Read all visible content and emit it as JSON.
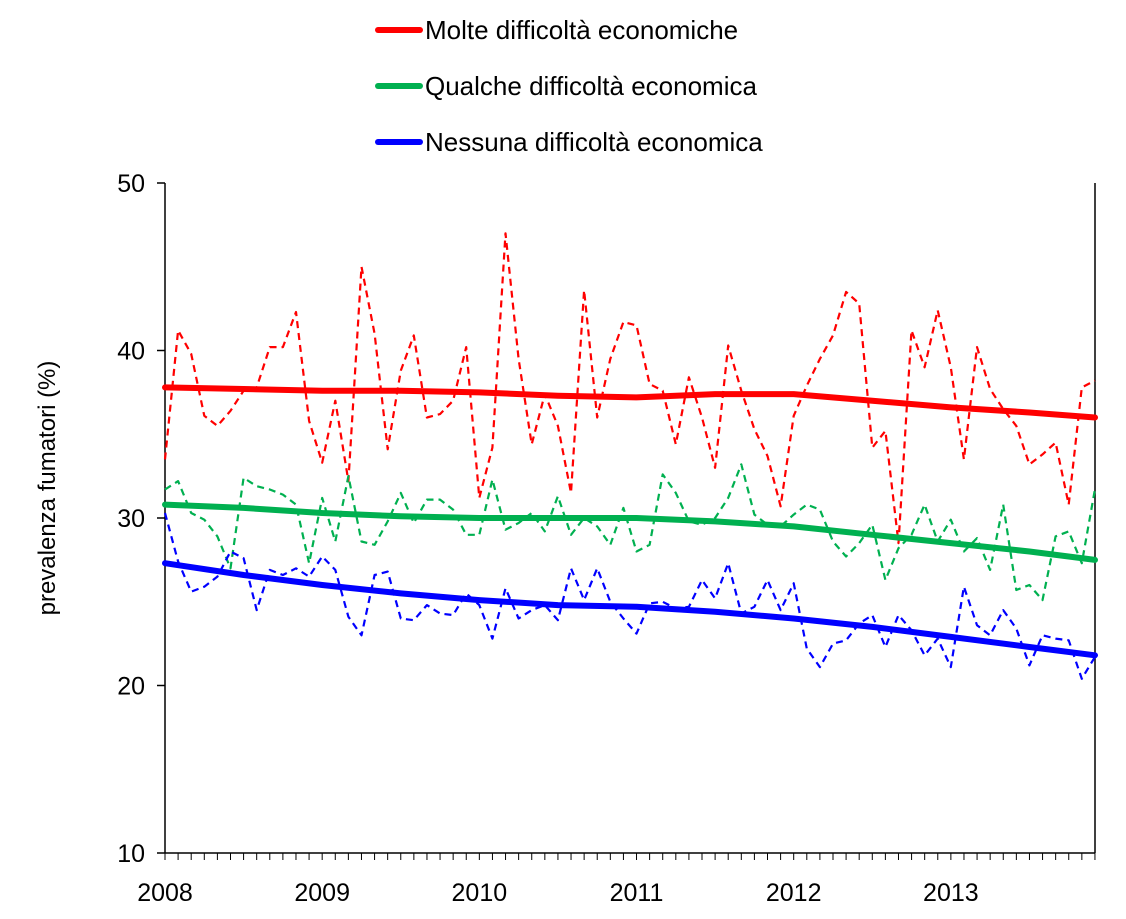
{
  "chart_data": {
    "type": "line",
    "title": "",
    "xlabel": "",
    "ylabel": "prevalenza fumatori (%)",
    "ylim": [
      10,
      50
    ],
    "yticks": [
      10,
      20,
      30,
      40,
      50
    ],
    "xlim": [
      2008.0,
      2013.917
    ],
    "xticks": [
      {
        "label": "2008",
        "value": 2008
      },
      {
        "label": "2009",
        "value": 2009
      },
      {
        "label": "2010",
        "value": 2010
      },
      {
        "label": "2011",
        "value": 2011
      },
      {
        "label": "2012",
        "value": 2012
      },
      {
        "label": "2013",
        "value": 2013
      }
    ],
    "x_unit": "year (monthly data, January 2008 – December 2013)",
    "grid": false,
    "legend_position": "top",
    "series": [
      {
        "name": "Molte difficoltà economiche",
        "color": "#ff0000",
        "style": "solid",
        "kind": "trend",
        "points": [
          [
            2008.0,
            37.8
          ],
          [
            2008.5,
            37.7
          ],
          [
            2009.0,
            37.6
          ],
          [
            2009.5,
            37.6
          ],
          [
            2010.0,
            37.5
          ],
          [
            2010.5,
            37.3
          ],
          [
            2011.0,
            37.2
          ],
          [
            2011.5,
            37.4
          ],
          [
            2012.0,
            37.4
          ],
          [
            2012.5,
            37.0
          ],
          [
            2013.0,
            36.6
          ],
          [
            2013.5,
            36.3
          ],
          [
            2013.917,
            36.0
          ]
        ]
      },
      {
        "name": "Qualche difficoltà economica",
        "color": "#00b050",
        "style": "solid",
        "kind": "trend",
        "points": [
          [
            2008.0,
            30.8
          ],
          [
            2008.5,
            30.6
          ],
          [
            2009.0,
            30.3
          ],
          [
            2009.5,
            30.1
          ],
          [
            2010.0,
            30.0
          ],
          [
            2010.5,
            30.0
          ],
          [
            2011.0,
            30.0
          ],
          [
            2011.5,
            29.8
          ],
          [
            2012.0,
            29.5
          ],
          [
            2012.5,
            29.0
          ],
          [
            2013.0,
            28.5
          ],
          [
            2013.5,
            28.0
          ],
          [
            2013.917,
            27.5
          ]
        ]
      },
      {
        "name": "Nessuna difficoltà economica",
        "color": "#0000ff",
        "style": "solid",
        "kind": "trend",
        "points": [
          [
            2008.0,
            27.3
          ],
          [
            2008.5,
            26.6
          ],
          [
            2009.0,
            26.0
          ],
          [
            2009.5,
            25.5
          ],
          [
            2010.0,
            25.1
          ],
          [
            2010.5,
            24.8
          ],
          [
            2011.0,
            24.7
          ],
          [
            2011.5,
            24.4
          ],
          [
            2012.0,
            24.0
          ],
          [
            2012.5,
            23.5
          ],
          [
            2013.0,
            22.9
          ],
          [
            2013.5,
            22.3
          ],
          [
            2013.917,
            21.8
          ]
        ]
      },
      {
        "name": "",
        "color": "#ff0000",
        "style": "dashed",
        "kind": "monthly",
        "start": 2008.0,
        "step": 0.08333,
        "values": [
          33.5,
          41.2,
          39.8,
          36.1,
          35.5,
          36.4,
          37.6,
          37.8,
          40.2,
          40.2,
          42.3,
          35.8,
          33.3,
          37.0,
          32.2,
          45.0,
          41.0,
          34.1,
          38.8,
          40.9,
          36.0,
          36.2,
          37.0,
          40.2,
          31.2,
          34.2,
          47.0,
          39.5,
          34.4,
          37.4,
          35.5,
          31.5,
          43.6,
          36.0,
          39.5,
          41.7,
          41.5,
          38.0,
          37.6,
          34.4,
          38.4,
          36.0,
          33.0,
          40.3,
          37.6,
          35.3,
          33.7,
          30.7,
          36.1,
          37.9,
          39.5,
          40.9,
          43.5,
          42.8,
          34.2,
          35.2,
          28.5,
          41.2,
          39.0,
          42.4,
          39.0,
          33.5,
          40.2,
          37.7,
          36.5,
          35.5,
          33.2,
          33.8,
          34.5,
          30.8,
          37.8,
          38.2
        ]
      },
      {
        "name": "",
        "color": "#00b050",
        "style": "dashed",
        "kind": "monthly",
        "start": 2008.0,
        "step": 0.08333,
        "values": [
          31.7,
          32.2,
          30.3,
          29.9,
          28.9,
          27.0,
          32.4,
          31.9,
          31.7,
          31.4,
          30.8,
          27.3,
          31.2,
          28.6,
          32.5,
          28.6,
          28.4,
          29.8,
          31.5,
          29.7,
          31.1,
          31.1,
          30.5,
          29.0,
          29.0,
          32.3,
          29.3,
          29.7,
          30.3,
          29.2,
          31.3,
          29.0,
          30.0,
          29.5,
          28.4,
          30.6,
          28.0,
          28.4,
          32.6,
          31.5,
          29.8,
          29.6,
          30.0,
          31.2,
          33.2,
          30.2,
          29.6,
          29.5,
          30.2,
          30.8,
          30.5,
          28.6,
          27.7,
          28.5,
          29.6,
          26.3,
          28.2,
          29.0,
          30.8,
          28.6,
          29.9,
          28.0,
          28.8,
          26.9,
          30.8,
          25.7,
          26.0,
          25.1,
          28.9,
          29.2,
          27.3,
          31.7
        ]
      },
      {
        "name": "",
        "color": "#0000ff",
        "style": "dashed",
        "kind": "monthly",
        "start": 2008.0,
        "step": 0.08333,
        "values": [
          30.3,
          27.4,
          25.6,
          25.9,
          26.5,
          28.0,
          27.6,
          24.5,
          26.9,
          26.6,
          27.0,
          26.5,
          27.7,
          26.9,
          24.1,
          23.0,
          26.6,
          26.8,
          24.0,
          23.9,
          24.8,
          24.3,
          24.2,
          25.5,
          24.8,
          22.8,
          25.8,
          24.0,
          24.5,
          24.8,
          23.9,
          27.0,
          25.1,
          27.0,
          25.0,
          24.0,
          23.1,
          24.9,
          25.0,
          24.6,
          24.7,
          26.3,
          25.2,
          27.3,
          24.3,
          24.7,
          26.3,
          24.5,
          26.1,
          22.2,
          21.1,
          22.5,
          22.7,
          23.7,
          24.2,
          22.3,
          24.2,
          23.3,
          21.8,
          22.8,
          21.1,
          25.9,
          23.6,
          23.0,
          24.5,
          23.4,
          21.2,
          23.0,
          22.8,
          22.7,
          20.4,
          21.7
        ]
      }
    ]
  }
}
